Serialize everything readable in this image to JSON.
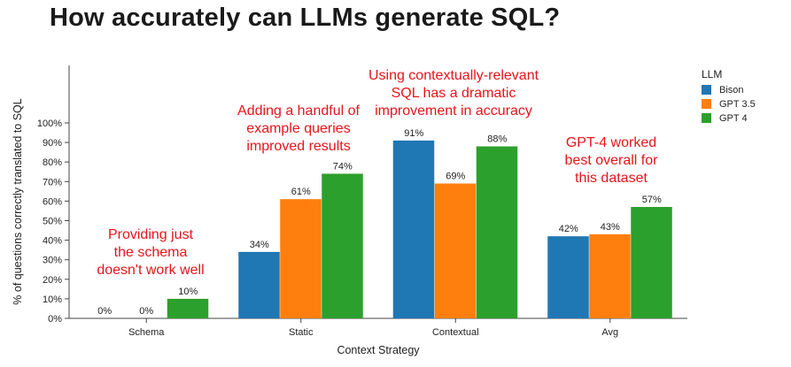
{
  "chart_data": {
    "type": "bar",
    "title": "How accurately can LLMs generate SQL?",
    "xlabel": "Context Strategy",
    "ylabel": "% of questions correctly translated to SQL",
    "categories": [
      "Schema",
      "Static",
      "Contextual",
      "Avg"
    ],
    "ylim": [
      0,
      100
    ],
    "yticks": [
      "0%",
      "10%",
      "20%",
      "30%",
      "40%",
      "50%",
      "60%",
      "70%",
      "80%",
      "90%",
      "100%"
    ],
    "grid": false,
    "legend": {
      "title": "LLM",
      "position": "top-right"
    },
    "series": [
      {
        "name": "Bison",
        "color": "#1f77b4",
        "values": [
          0,
          34,
          91,
          42
        ],
        "labels": [
          "0%",
          "34%",
          "91%",
          "42%"
        ]
      },
      {
        "name": "GPT 3.5",
        "color": "#ff7f0e",
        "values": [
          0,
          61,
          69,
          43
        ],
        "labels": [
          "0%",
          "61%",
          "69%",
          "43%"
        ]
      },
      {
        "name": "GPT 4",
        "color": "#2ca02c",
        "values": [
          10,
          74,
          88,
          57
        ],
        "labels": [
          "10%",
          "74%",
          "88%",
          "57%"
        ]
      }
    ],
    "annotations": [
      {
        "lines": [
          "Providing just",
          "the schema",
          "doesn't work well"
        ],
        "color": "#e8141b"
      },
      {
        "lines": [
          "Adding a handful of",
          "example queries",
          "improved results"
        ],
        "color": "#e8141b"
      },
      {
        "lines": [
          "Using contextually-relevant",
          "SQL has a dramatic",
          "improvement in accuracy"
        ],
        "color": "#e8141b"
      },
      {
        "lines": [
          "GPT-4 worked",
          "best overall for",
          "this dataset"
        ],
        "color": "#e8141b"
      }
    ]
  }
}
